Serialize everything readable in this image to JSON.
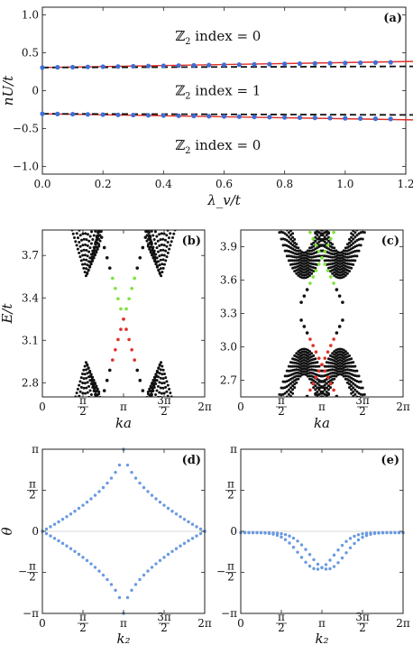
{
  "chart_data": [
    {
      "id": "a",
      "type": "line",
      "panel_label": "(a)",
      "xlabel": "λ_v/t",
      "ylabel": "nU/t",
      "xlim": [
        0,
        1.2
      ],
      "ylim": [
        -1.1,
        1.1
      ],
      "xticks": [
        "0.0",
        "0.2",
        "0.4",
        "0.6",
        "0.8",
        "1.0",
        "1.2"
      ],
      "xtick_values": [
        0,
        0.2,
        0.4,
        0.6,
        0.8,
        1.0,
        1.2
      ],
      "yticks": [
        "1.0",
        "0.5",
        "0",
        "−0.5",
        "−1.0"
      ],
      "ytick_values": [
        1.0,
        0.5,
        0,
        -0.5,
        -1.0
      ],
      "annotations": [
        {
          "prefix": "ℤ",
          "sub": "2",
          "text": " index  =  0",
          "x": 0.58,
          "y": 0.72
        },
        {
          "prefix": "ℤ",
          "sub": "2",
          "text": " index  =  1",
          "x": 0.58,
          "y": 0.0
        },
        {
          "prefix": "ℤ",
          "sub": "2",
          "text": " index  =  0",
          "x": 0.58,
          "y": -0.72
        }
      ],
      "series": [
        {
          "style": "red-line",
          "color": "#e0302a",
          "x": [
            0,
            1.2
          ],
          "y": [
            0.305,
            0.385
          ]
        },
        {
          "style": "black-dashed",
          "color": "#111111",
          "x": [
            0,
            1.2
          ],
          "y": [
            0.305,
            0.32
          ]
        },
        {
          "style": "blue-dots",
          "color": "#3d6fd8",
          "x": [
            0,
            0.05,
            0.1,
            0.15,
            0.2,
            0.25,
            0.3,
            0.35,
            0.4,
            0.45,
            0.5,
            0.55,
            0.6,
            0.65,
            0.7,
            0.75,
            0.8,
            0.85,
            0.9,
            0.95,
            1.0,
            1.05,
            1.1,
            1.15
          ],
          "y": [
            0.305,
            0.308,
            0.31,
            0.313,
            0.316,
            0.319,
            0.322,
            0.325,
            0.328,
            0.331,
            0.334,
            0.337,
            0.34,
            0.343,
            0.346,
            0.349,
            0.352,
            0.355,
            0.358,
            0.361,
            0.364,
            0.367,
            0.37,
            0.373
          ]
        },
        {
          "style": "red-line",
          "color": "#e0302a",
          "x": [
            0,
            1.2
          ],
          "y": [
            -0.305,
            -0.385
          ]
        },
        {
          "style": "black-dashed",
          "color": "#111111",
          "x": [
            0,
            1.2
          ],
          "y": [
            -0.305,
            -0.32
          ]
        },
        {
          "style": "blue-dots",
          "color": "#3d6fd8",
          "x": [
            0,
            0.05,
            0.1,
            0.15,
            0.2,
            0.25,
            0.3,
            0.35,
            0.4,
            0.45,
            0.5,
            0.55,
            0.6,
            0.65,
            0.7,
            0.75,
            0.8,
            0.85,
            0.9,
            0.95,
            1.0,
            1.05,
            1.1,
            1.15
          ],
          "y": [
            -0.305,
            -0.308,
            -0.31,
            -0.313,
            -0.316,
            -0.319,
            -0.322,
            -0.325,
            -0.328,
            -0.331,
            -0.334,
            -0.337,
            -0.34,
            -0.343,
            -0.346,
            -0.349,
            -0.352,
            -0.355,
            -0.358,
            -0.361,
            -0.364,
            -0.367,
            -0.37,
            -0.373
          ]
        }
      ]
    },
    {
      "id": "b",
      "type": "scatter",
      "panel_label": "(b)",
      "xlabel": "ka",
      "ylabel": "E/t",
      "xlim": [
        0,
        6.2832
      ],
      "ylim": [
        2.7,
        3.88
      ],
      "xticks": [
        "0",
        "π/2",
        "π",
        "3π/2",
        "2π"
      ],
      "xtick_values": [
        0,
        1.5708,
        3.1416,
        4.7124,
        6.2832
      ],
      "yticks": [
        "3.7",
        "3.4",
        "3.1",
        "2.8"
      ],
      "ytick_values": [
        3.7,
        3.4,
        3.1,
        2.8
      ],
      "band_model": {
        "center_k": 3.1416,
        "gap_center": 3.25,
        "k0_list": [
          1.7,
          1.75,
          1.8,
          1.85,
          1.9,
          1.95,
          2.0,
          2.05,
          2.1,
          2.15,
          2.2
        ],
        "slope": 0.6,
        "n_k": 26
      },
      "edge_states": {
        "center": [
          3.1416,
          3.25
        ],
        "slope": 0.68,
        "k_half_width": 0.85,
        "upper_outer": "#111111",
        "upper_inner": "#7ee23a",
        "lower_inner": "#e0302a",
        "lower_outer": "#111111"
      }
    },
    {
      "id": "c",
      "type": "scatter",
      "panel_label": "(c)",
      "xlabel": "ka",
      "ylabel": "",
      "xlim": [
        0,
        6.2832
      ],
      "ylim": [
        2.55,
        4.05
      ],
      "xticks": [
        "0",
        "π/2",
        "π",
        "3π/2",
        "2π"
      ],
      "xtick_values": [
        0,
        1.5708,
        3.1416,
        4.7124,
        6.2832
      ],
      "yticks": [
        "3.9",
        "3.6",
        "3.3",
        "3.0",
        "2.7"
      ],
      "ytick_values": [
        3.9,
        3.6,
        3.3,
        3.0,
        2.7
      ],
      "band_model": {
        "upper_min": 3.62,
        "lower_max": 2.98,
        "valleys": [
          2.45,
          3.84
        ],
        "curv_list": [
          0.45,
          0.5,
          0.55,
          0.6,
          0.65,
          0.7,
          0.75,
          0.8,
          0.85,
          0.9
        ],
        "n_k": 30
      },
      "edge_states": [
        {
          "band": "upper",
          "vertex": [
            3.1416,
            3.92
          ],
          "apex_color": "#7ee23a",
          "side_color": "#111111",
          "slope": 0.5
        },
        {
          "band": "lower",
          "vertex": [
            3.1416,
            2.67
          ],
          "apex_color": "#e0302a",
          "side_color": "#111111",
          "slope": 0.5
        }
      ]
    },
    {
      "id": "d",
      "type": "scatter",
      "panel_label": "(d)",
      "xlabel": "k₂",
      "ylabel": "θ",
      "xlim": [
        0,
        6.2832
      ],
      "ylim": [
        -3.1416,
        3.1416
      ],
      "xticks": [
        "0",
        "π/2",
        "π",
        "3π/2",
        "2π"
      ],
      "xtick_values": [
        0,
        1.5708,
        3.1416,
        4.7124,
        6.2832
      ],
      "yticks": [
        "π",
        "π/2",
        "0",
        "−π/2",
        "−π"
      ],
      "ytick_values": [
        3.1416,
        1.5708,
        0,
        -1.5708,
        -3.1416
      ],
      "color": "#6a9ae0",
      "curves": [
        {
          "kind": "winding",
          "sign": 1
        },
        {
          "kind": "winding",
          "sign": -1
        }
      ],
      "n_points": 40
    },
    {
      "id": "e",
      "type": "scatter",
      "panel_label": "(e)",
      "xlabel": "k₂",
      "ylabel": "",
      "xlim": [
        0,
        6.2832
      ],
      "ylim": [
        -3.1416,
        3.1416
      ],
      "xticks": [
        "0",
        "π/2",
        "π",
        "3π/2",
        "2π"
      ],
      "xtick_values": [
        0,
        1.5708,
        3.1416,
        4.7124,
        6.2832
      ],
      "yticks": [
        "π",
        "π/2",
        "0",
        "−π/2",
        "−π"
      ],
      "ytick_values": [
        3.1416,
        1.5708,
        0,
        -1.5708,
        -3.1416
      ],
      "color": "#6a9ae0",
      "curves": [
        {
          "kind": "dip",
          "center": 2.95,
          "depth": -1.45,
          "width": 0.95
        },
        {
          "kind": "dip",
          "center": 3.35,
          "depth": -1.45,
          "width": 0.95
        }
      ],
      "n_points": 40
    }
  ]
}
